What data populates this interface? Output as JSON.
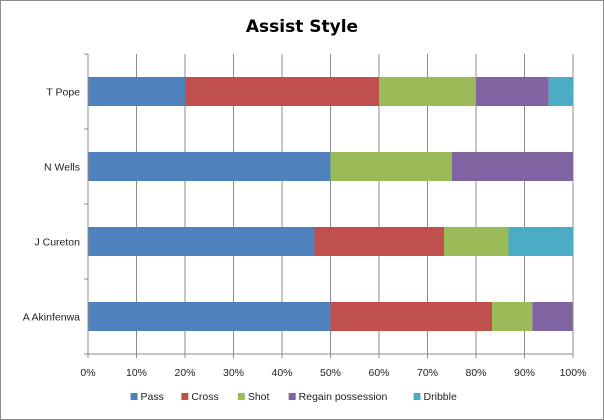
{
  "chart_data": {
    "type": "bar",
    "orientation": "horizontal",
    "stacked": "percent",
    "title": "Assist Style",
    "categories": [
      "T Pope",
      "N Wells",
      "J Cureton",
      "A Akinfenwa"
    ],
    "series": [
      {
        "name": "Pass",
        "color": "#4f81bd",
        "values": [
          20,
          50,
          46.7,
          50
        ]
      },
      {
        "name": "Cross",
        "color": "#c0504d",
        "values": [
          40,
          0,
          26.7,
          33.3
        ]
      },
      {
        "name": "Shot",
        "color": "#9bbb59",
        "values": [
          20,
          25,
          13.3,
          8.3
        ]
      },
      {
        "name": "Regain possession",
        "color": "#8064a2",
        "values": [
          15,
          25,
          0,
          8.3
        ]
      },
      {
        "name": "Dribble",
        "color": "#4bacc6",
        "values": [
          5,
          0,
          13.3,
          0
        ]
      }
    ],
    "xlim": [
      0,
      100
    ],
    "xticks": [
      "0%",
      "10%",
      "20%",
      "30%",
      "40%",
      "50%",
      "60%",
      "70%",
      "80%",
      "90%",
      "100%"
    ],
    "grid": "vertical",
    "legend": "bottom"
  }
}
